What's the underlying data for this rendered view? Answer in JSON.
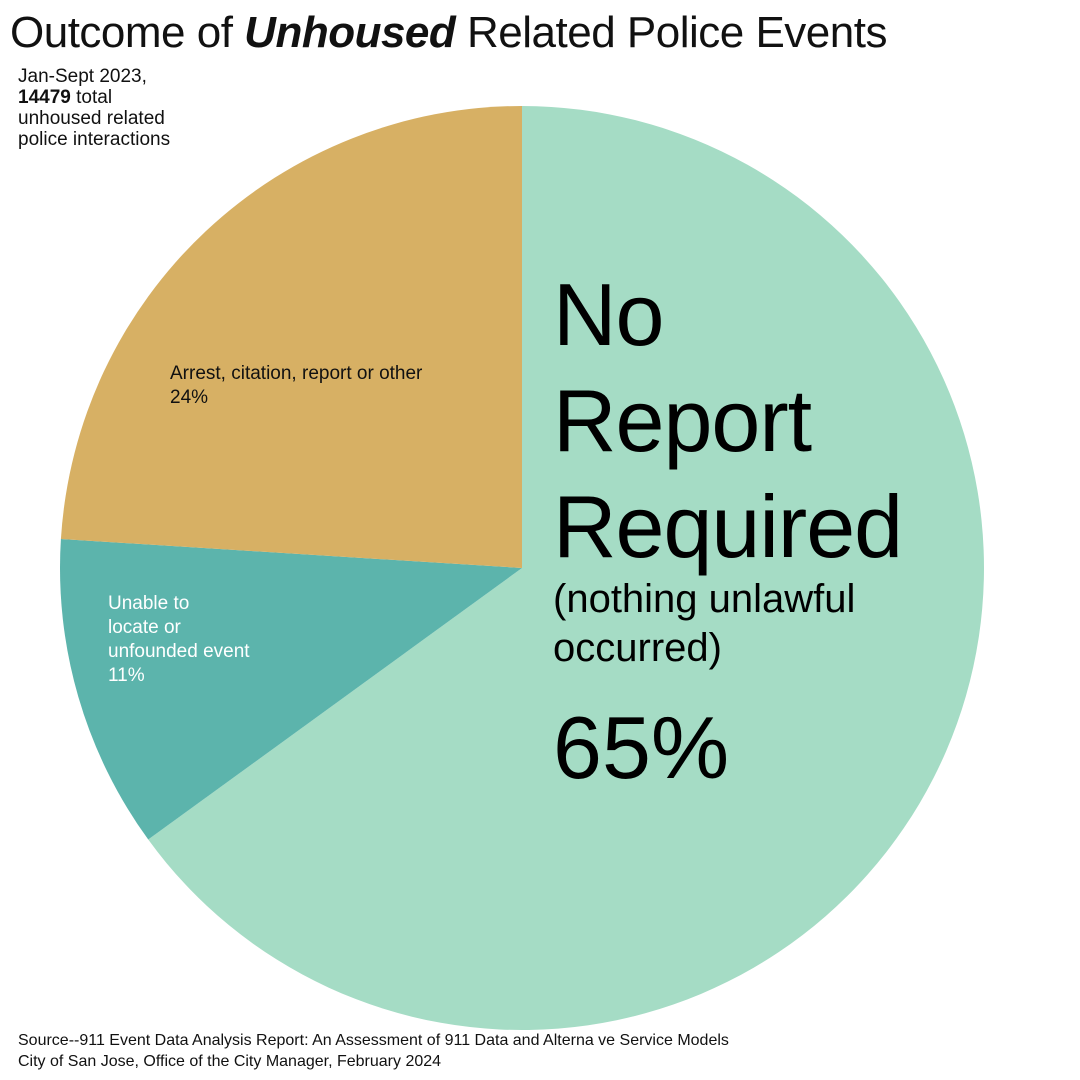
{
  "chart_data": {
    "type": "pie",
    "title_pre": "Outcome of ",
    "title_emph": "Unhoused",
    "title_post": " Related Police Events",
    "subtitle": {
      "line1": "Jan-Sept 2023,",
      "total": "14479",
      "line2_rest": " total",
      "line3": "unhoused related",
      "line4": "police interactions"
    },
    "slices": [
      {
        "name": "No Report Required",
        "name_lines": [
          "No",
          "Report",
          "Required"
        ],
        "note_lines": [
          "(nothing unlawful",
          "occurred)"
        ],
        "value": 65,
        "label_pct": "65%",
        "color": "#a5dcc5"
      },
      {
        "name": "Unable to locate or unfounded event",
        "name_lines": [
          "Unable to",
          "locate or",
          "unfounded event"
        ],
        "value": 11,
        "label_pct": "11%",
        "color": "#5cb4ac"
      },
      {
        "name": "Arrest, citation, report or other",
        "name_lines": [
          "Arrest, citation, report or other"
        ],
        "value": 24,
        "label_pct": "24%",
        "color": "#d7b064"
      }
    ],
    "source_line1": "Source--911 Event Data Analysis Report: An Assessment of 911 Data and Alterna ve Service Models",
    "source_line2": "City of San Jose, Office of the City Manager, February 2024"
  }
}
